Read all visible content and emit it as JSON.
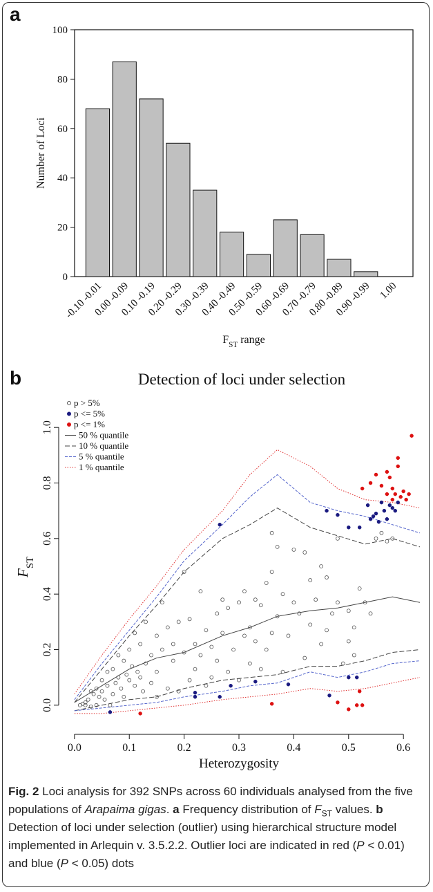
{
  "chart_data": [
    {
      "type": "bar",
      "label": "a",
      "categories": [
        "-0.10 -0.01",
        "0.00 -0.09",
        "0.10 -0.19",
        "0.20 -0.29",
        "0.30 -0.39",
        "0.40 -0.49",
        "0.50 -0.59",
        "0.60 -0.69",
        "0.70 -0.79",
        "0.80 -0.89",
        "0.90 -0.99",
        "1.00"
      ],
      "values": [
        68,
        87,
        72,
        54,
        35,
        18,
        9,
        23,
        17,
        7,
        2,
        0
      ],
      "color": "#c0c0c0",
      "ylabel": "Number of Loci",
      "xlabel": [
        {
          "t": "F"
        },
        {
          "t": "ST",
          "s": "sub"
        },
        {
          "t": " range"
        }
      ],
      "ylim": [
        0,
        100
      ],
      "yticks": [
        0,
        20,
        40,
        60,
        80,
        100
      ]
    },
    {
      "type": "scatter",
      "label": "b",
      "title": "Detection of loci under selection",
      "xlabel": "Heterozygosity",
      "ylabel": [
        {
          "t": "F",
          "s": "i"
        },
        {
          "t": "ST",
          "s": "sub"
        }
      ],
      "xlim": [
        -0.025,
        0.63
      ],
      "xticks": [
        {
          "value": 0,
          "label": "0.0"
        },
        0.1,
        0.2,
        0.3,
        0.4,
        0.5,
        0.6
      ],
      "ylim": [
        -0.1,
        1.1
      ],
      "yticks": [
        {
          "value": 0,
          "label": "0.0"
        },
        0.2,
        0.4,
        0.6,
        0.8,
        {
          "value": 1,
          "label": "1.0"
        }
      ],
      "legend": "top-left",
      "series": [
        {
          "name": "p > 5%",
          "color": "#555555",
          "filled": false,
          "x": [
            0.01,
            0.015,
            0.02,
            0.02,
            0.025,
            0.03,
            0.03,
            0.035,
            0.04,
            0.04,
            0.045,
            0.05,
            0.05,
            0.055,
            0.06,
            0.06,
            0.065,
            0.07,
            0.07,
            0.075,
            0.08,
            0.08,
            0.085,
            0.09,
            0.09,
            0.095,
            0.1,
            0.1,
            0.105,
            0.11,
            0.11,
            0.115,
            0.12,
            0.12,
            0.125,
            0.13,
            0.13,
            0.14,
            0.14,
            0.15,
            0.15,
            0.16,
            0.16,
            0.17,
            0.17,
            0.18,
            0.18,
            0.19,
            0.19,
            0.2,
            0.2,
            0.21,
            0.21,
            0.22,
            0.22,
            0.23,
            0.23,
            0.24,
            0.25,
            0.25,
            0.26,
            0.26,
            0.27,
            0.27,
            0.28,
            0.28,
            0.29,
            0.3,
            0.3,
            0.31,
            0.31,
            0.32,
            0.32,
            0.33,
            0.33,
            0.34,
            0.34,
            0.35,
            0.35,
            0.36,
            0.36,
            0.37,
            0.37,
            0.38,
            0.38,
            0.39,
            0.4,
            0.4,
            0.41,
            0.42,
            0.42,
            0.43,
            0.43,
            0.44,
            0.45,
            0.45,
            0.46,
            0.46,
            0.47,
            0.48,
            0.48,
            0.49,
            0.5,
            0.5,
            0.51,
            0.51,
            0.52,
            0.53,
            0.54,
            0.55,
            0.56,
            0.57,
            0.58,
            0.15,
            0.24,
            0.36
          ],
          "values": [
            0,
            0.005,
            0.01,
            0,
            0.02,
            -0.005,
            0.05,
            0.04,
            0.06,
            0,
            0.03,
            0.09,
            0.05,
            0.02,
            0.12,
            0.07,
            0,
            0.13,
            0.04,
            0.08,
            0.18,
            0.1,
            0.06,
            0.16,
            0.03,
            0.11,
            0.2,
            0.09,
            0.14,
            0.26,
            0.07,
            0.12,
            0.22,
            0.1,
            0.05,
            0.3,
            0.15,
            0.18,
            0.08,
            0.25,
            0.12,
            0.37,
            0.2,
            0.28,
            0.06,
            0.16,
            0.22,
            0.3,
            0.05,
            0.48,
            0.19,
            0.09,
            0.31,
            0.22,
            0.13,
            0.41,
            0.18,
            0.27,
            0.1,
            0.21,
            0.33,
            0.16,
            0.38,
            0.26,
            0.12,
            0.35,
            0.2,
            0.37,
            0.09,
            0.25,
            0.41,
            0.15,
            0.28,
            0.38,
            0.23,
            0.13,
            0.36,
            0.44,
            0.2,
            0.62,
            0.48,
            0.32,
            0.57,
            0.12,
            0.4,
            0.25,
            0.56,
            0.37,
            0.33,
            0.17,
            0.55,
            0.45,
            0.29,
            0.38,
            0.22,
            0.5,
            0.27,
            0.46,
            0.33,
            0.6,
            0.37,
            0.15,
            0.34,
            0.23,
            0.28,
            0.18,
            0.42,
            0.37,
            0.33,
            0.6,
            0.62,
            0.59,
            0.6,
            0.03,
            0.07,
            0.26
          ]
        },
        {
          "name": "p <= 5%",
          "color": "#1a1a80",
          "filled": true,
          "x": [
            0.065,
            0.22,
            0.22,
            0.265,
            0.285,
            0.33,
            0.39,
            0.465,
            0.5,
            0.515,
            0.265,
            0.46,
            0.48,
            0.5,
            0.52,
            0.535,
            0.54,
            0.545,
            0.55,
            0.555,
            0.56,
            0.565,
            0.57,
            0.575,
            0.58,
            0.585,
            0.59
          ],
          "values": [
            -0.025,
            0.03,
            0.045,
            0.03,
            0.07,
            0.085,
            0.075,
            0.035,
            0.1,
            0.1,
            0.65,
            0.7,
            0.685,
            0.64,
            0.64,
            0.72,
            0.67,
            0.68,
            0.69,
            0.66,
            0.73,
            0.7,
            0.67,
            0.72,
            0.71,
            0.7,
            0.73
          ]
        },
        {
          "name": "p <= 1%",
          "color": "#dd1111",
          "filled": true,
          "x": [
            0.12,
            0.36,
            0.48,
            0.5,
            0.515,
            0.52,
            0.525,
            0.525,
            0.54,
            0.55,
            0.56,
            0.57,
            0.57,
            0.575,
            0.58,
            0.58,
            0.585,
            0.59,
            0.59,
            0.595,
            0.6,
            0.605,
            0.61,
            0.615
          ],
          "values": [
            -0.03,
            0.005,
            0.01,
            -0.015,
            0,
            0.05,
            0,
            0.78,
            0.8,
            0.83,
            0.79,
            0.84,
            0.76,
            0.82,
            0.78,
            0.74,
            0.76,
            0.89,
            0.86,
            0.75,
            0.77,
            0.74,
            0.76,
            0.97
          ]
        }
      ],
      "quantiles": {
        "x": [
          0,
          0.05,
          0.1,
          0.15,
          0.2,
          0.27,
          0.32,
          0.37,
          0.43,
          0.48,
          0.53,
          0.58,
          0.63
        ],
        "series": [
          {
            "name": "50 % quantile",
            "color": "#444444",
            "dash": "solid",
            "values": [
              0.01,
              0.07,
              0.13,
              0.17,
              0.19,
              0.25,
              0.28,
              0.32,
              0.34,
              0.35,
              0.37,
              0.39,
              0.37
            ]
          },
          {
            "name": "10 % quantile",
            "color": "#444444",
            "dash": "longdash",
            "values": [
              0.01,
              0.13,
              0.25,
              0.36,
              0.48,
              0.6,
              0.65,
              0.71,
              0.64,
              0.61,
              0.58,
              0.6,
              0.57
            ],
            "lower": [
              -0.02,
              0,
              0.02,
              0.03,
              0.06,
              0.09,
              0.1,
              0.11,
              0.14,
              0.14,
              0.16,
              0.19,
              0.2
            ]
          },
          {
            "name": "5 % quantile",
            "color": "#5566cc",
            "dash": "dash",
            "values": [
              0.02,
              0.15,
              0.27,
              0.39,
              0.52,
              0.65,
              0.75,
              0.83,
              0.73,
              0.7,
              0.68,
              0.65,
              0.62
            ],
            "lower": [
              -0.02,
              -0.01,
              0,
              0.01,
              0.03,
              0.05,
              0.07,
              0.08,
              0.12,
              0.1,
              0.12,
              0.15,
              0.16
            ]
          },
          {
            "name": "1 % quantile",
            "color": "#e03030",
            "dash": "dot",
            "values": [
              0.04,
              0.18,
              0.31,
              0.43,
              0.56,
              0.7,
              0.83,
              0.92,
              0.86,
              0.78,
              0.74,
              0.73,
              0.71
            ],
            "lower": [
              -0.03,
              -0.03,
              -0.02,
              -0.01,
              0,
              0.02,
              0.03,
              0.04,
              0.06,
              0.05,
              0.06,
              0.08,
              0.1
            ]
          }
        ]
      }
    }
  ],
  "caption": [
    {
      "t": "Fig. 2",
      "s": "b"
    },
    {
      "t": " Loci analysis for 392 SNPs across 60 individuals analysed from the five populations of "
    },
    {
      "t": "Arapaima gigas",
      "s": "i"
    },
    {
      "t": ". "
    },
    {
      "t": "a",
      "s": "b"
    },
    {
      "t": " Frequency distribution of "
    },
    {
      "t": "F",
      "s": "i"
    },
    {
      "t": "ST",
      "s": "sub"
    },
    {
      "t": " values. "
    },
    {
      "t": "b",
      "s": "b"
    },
    {
      "t": " Detection of loci under selection (outlier) using hierarchical structure model implemented in Arlequin v. 3.5.2.2. Outlier loci are indicated in red ("
    },
    {
      "t": "P",
      "s": "i"
    },
    {
      "t": " < 0.01) and blue ("
    },
    {
      "t": "P",
      "s": "i"
    },
    {
      "t": " < 0.05) dots"
    }
  ]
}
